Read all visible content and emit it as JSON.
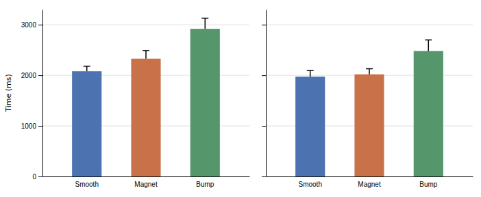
{
  "chart_data": [
    {
      "type": "bar",
      "ylabel": "Time (ms)",
      "categories": [
        "Smooth",
        "Magnet",
        "Bump"
      ],
      "values": [
        2080,
        2330,
        2920
      ],
      "errors": [
        100,
        160,
        210
      ],
      "colors": [
        "#4C72B0",
        "#C9724A",
        "#55976A"
      ],
      "ylim": [
        0,
        3300
      ],
      "yticks": [
        0,
        1000,
        2000,
        3000
      ],
      "grid": true
    },
    {
      "type": "bar",
      "categories": [
        "Smooth",
        "Magnet",
        "Bump"
      ],
      "values": [
        1975,
        2020,
        2480
      ],
      "errors": [
        120,
        110,
        220
      ],
      "colors": [
        "#4C72B0",
        "#C9724A",
        "#55976A"
      ],
      "ylim": [
        0,
        3300
      ],
      "yticks": [
        0,
        1000,
        2000,
        3000
      ],
      "grid": true,
      "tick_labels": "x"
    }
  ]
}
